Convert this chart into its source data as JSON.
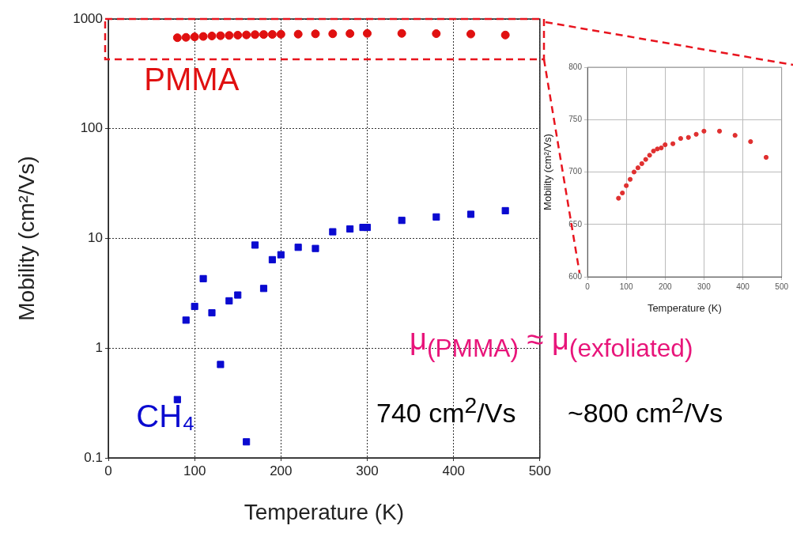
{
  "chart_data": [
    {
      "type": "scatter",
      "xlabel": "Temperature (K)",
      "ylabel": "Mobility (cm²/Vs)",
      "log": "y",
      "grid": true,
      "xlim": [
        0,
        500
      ],
      "xticks": [
        0,
        100,
        200,
        300,
        400,
        500
      ],
      "ylim": [
        0.1,
        1000
      ],
      "yticks": [
        0.1,
        1,
        10,
        100,
        1000
      ],
      "series": [
        {
          "name": "PMMA",
          "color": "#e01010",
          "marker": "circle",
          "x": [
            80,
            90,
            100,
            110,
            120,
            130,
            140,
            150,
            160,
            170,
            180,
            190,
            200,
            220,
            240,
            260,
            280,
            300,
            340,
            380,
            420,
            460
          ],
          "values": [
            675,
            680,
            687,
            693,
            700,
            704,
            708,
            712,
            716,
            720,
            722,
            723,
            726,
            727,
            732,
            733,
            736,
            739,
            739,
            735,
            729,
            714
          ]
        },
        {
          "name": "CH₄",
          "color": "#0a0ad0",
          "marker": "square",
          "x": [
            80,
            90,
            100,
            110,
            120,
            130,
            140,
            150,
            160,
            170,
            180,
            190,
            200,
            220,
            240,
            260,
            280,
            295,
            300,
            340,
            380,
            420,
            460
          ],
          "values": [
            0.34,
            1.8,
            2.4,
            4.3,
            2.1,
            0.71,
            2.7,
            3.05,
            0.14,
            8.7,
            3.5,
            6.4,
            7.1,
            8.3,
            8.1,
            11.5,
            12.2,
            12.6,
            12.6,
            14.6,
            15.7,
            16.6,
            17.9
          ]
        }
      ],
      "annotations": [
        "μ$_{(PMMA)}$ ≈ μ$_{(exfoliated)}$",
        "740 cm$^{2}$/Vs",
        "~800 cm$^{2}$/Vs"
      ]
    },
    {
      "type": "scatter",
      "xlabel": "Temperature (K)",
      "ylabel": "Mobility (cm²/Vs)",
      "grid": true,
      "xlim": [
        0,
        500
      ],
      "xticks": [
        0,
        100,
        200,
        300,
        400,
        500
      ],
      "ylim": [
        600,
        800
      ],
      "yticks": [
        600,
        650,
        700,
        750,
        800
      ],
      "series": [
        {
          "color": "#e03030",
          "marker": "circle",
          "x": [
            80,
            90,
            100,
            110,
            120,
            130,
            140,
            150,
            160,
            170,
            180,
            190,
            200,
            220,
            240,
            260,
            280,
            300,
            340,
            380,
            420,
            460
          ],
          "values": [
            675,
            680,
            687,
            693,
            700,
            704,
            708,
            712,
            716,
            720,
            722,
            723,
            726,
            727,
            732,
            733,
            736,
            739,
            739,
            735,
            729,
            714
          ]
        }
      ]
    }
  ]
}
